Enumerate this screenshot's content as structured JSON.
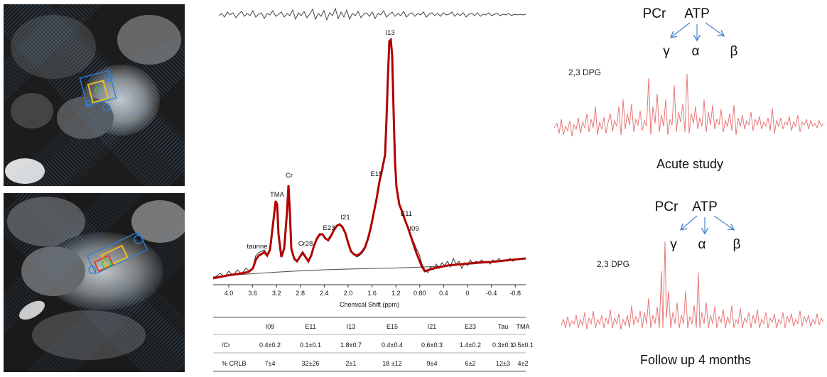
{
  "mrs": {
    "peak_labels": [
      "taurine",
      "TMA",
      "Cr",
      "Cr28",
      "E23",
      "I21",
      "E15",
      "I13",
      "E11",
      "I09"
    ],
    "x_axis": {
      "ticks": [
        "4.0",
        "3.6",
        "3.2",
        "2.8",
        "2.4",
        "2.0",
        "1.6",
        "1.2",
        "0.80",
        "0.4",
        "0",
        "-0.4",
        "-0.8"
      ],
      "label": "Chemical Shift (ppm)"
    },
    "table": {
      "headers": [
        "",
        "I09",
        "E11",
        "I13",
        "E15",
        "I21",
        "E23",
        "Tau",
        "TMA"
      ],
      "rows": [
        [
          "/Cr",
          "0.4±0.2",
          "0.1±0.1",
          "1.8±0.7",
          "0.4±0.4",
          "0.6±0.3",
          "1.4±0.2",
          "0.3±0.1",
          "0.5±0.1"
        ],
        [
          "% CRLB",
          "7±4",
          "32±26",
          "2±1",
          "18 ±12",
          "9±4",
          "6±2",
          "12±3",
          "4±2"
        ]
      ]
    }
  },
  "p31": {
    "acute": {
      "metabolite_1": "PCr",
      "metabolite_2": "ATP",
      "gamma": "γ",
      "alpha": "α",
      "beta": "β",
      "dpg": "2,3 DPG",
      "caption": "Acute study"
    },
    "followup": {
      "metabolite_1": "PCr",
      "metabolite_2": "ATP",
      "gamma": "γ",
      "alpha": "α",
      "beta": "β",
      "dpg": "2,3 DPG",
      "caption": "Follow up 4 months"
    }
  },
  "colors": {
    "fit_line": "#b00000",
    "data_line": "#333333",
    "p31_line": "#e87878",
    "arrow": "#4a86c8",
    "voxel_yellow": "#e8c020",
    "voxel_blue": "#2e7fd6"
  }
}
